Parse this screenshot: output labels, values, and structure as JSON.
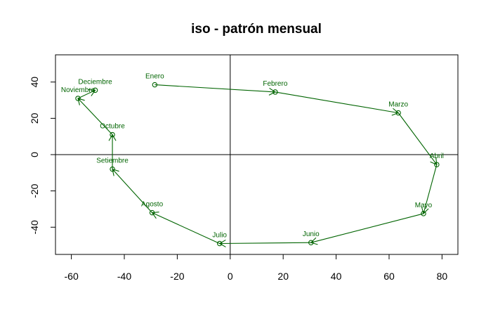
{
  "chart_data": {
    "type": "line",
    "title": "iso - patrón mensual",
    "xlabel": "",
    "ylabel": "",
    "xlim": [
      -66,
      86
    ],
    "ylim": [
      -55,
      55
    ],
    "xticks": [
      -60,
      -40,
      -20,
      0,
      20,
      40,
      60,
      80
    ],
    "yticks": [
      -40,
      -20,
      0,
      20,
      40
    ],
    "grid": false,
    "reference_lines": {
      "x": 0,
      "y": 0
    },
    "series_color": "#006400",
    "points": [
      {
        "label": "Enero",
        "x": -28.5,
        "y": 38.5
      },
      {
        "label": "Febrero",
        "x": 17,
        "y": 34.5
      },
      {
        "label": "Marzo",
        "x": 63.5,
        "y": 23
      },
      {
        "label": "Abril",
        "x": 78,
        "y": -5.5
      },
      {
        "label": "Mayo",
        "x": 73,
        "y": -32.5
      },
      {
        "label": "Junio",
        "x": 30.5,
        "y": -48.5
      },
      {
        "label": "Julio",
        "x": -4,
        "y": -49
      },
      {
        "label": "Agosto",
        "x": -29.5,
        "y": -32
      },
      {
        "label": "Setiembre",
        "x": -44.5,
        "y": -8
      },
      {
        "label": "Octubre",
        "x": -44.5,
        "y": 11
      },
      {
        "label": "Noviembre",
        "x": -57.5,
        "y": 31
      },
      {
        "label": "Deciembre",
        "x": -51,
        "y": 35.5
      }
    ]
  }
}
